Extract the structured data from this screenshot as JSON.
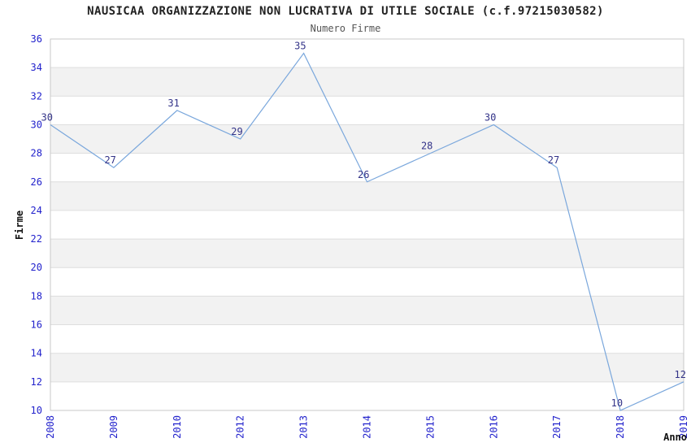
{
  "chart_data": {
    "type": "line",
    "title": "NAUSICAA ORGANIZZAZIONE NON LUCRATIVA DI UTILE SOCIALE (c.f.97215030582)",
    "subtitle": "Numero Firme",
    "xlabel": "Anno",
    "ylabel": "Firme",
    "categories": [
      "2008",
      "2009",
      "2010",
      "2012",
      "2013",
      "2014",
      "2015",
      "2016",
      "2017",
      "2018",
      "2019"
    ],
    "values": [
      30,
      27,
      31,
      29,
      35,
      26,
      28,
      30,
      27,
      10,
      12
    ],
    "ylim": [
      10,
      36
    ],
    "ytick_step": 2,
    "yticks": [
      10,
      12,
      14,
      16,
      18,
      20,
      22,
      24,
      26,
      28,
      30,
      32,
      34,
      36
    ],
    "grid": "horizontal",
    "band_fill": "alternating-gray",
    "legend": "none",
    "point_markers": false,
    "colors": {
      "line": "#7aa7dc",
      "tick_label": "#2222cc",
      "point_label": "#333388",
      "band": "#f2f2f2",
      "gridline": "#dedede",
      "border": "#c8c8c8",
      "title": "#222222",
      "subtitle": "#555555",
      "axis_label": "#111111",
      "background": "#ffffff"
    }
  }
}
